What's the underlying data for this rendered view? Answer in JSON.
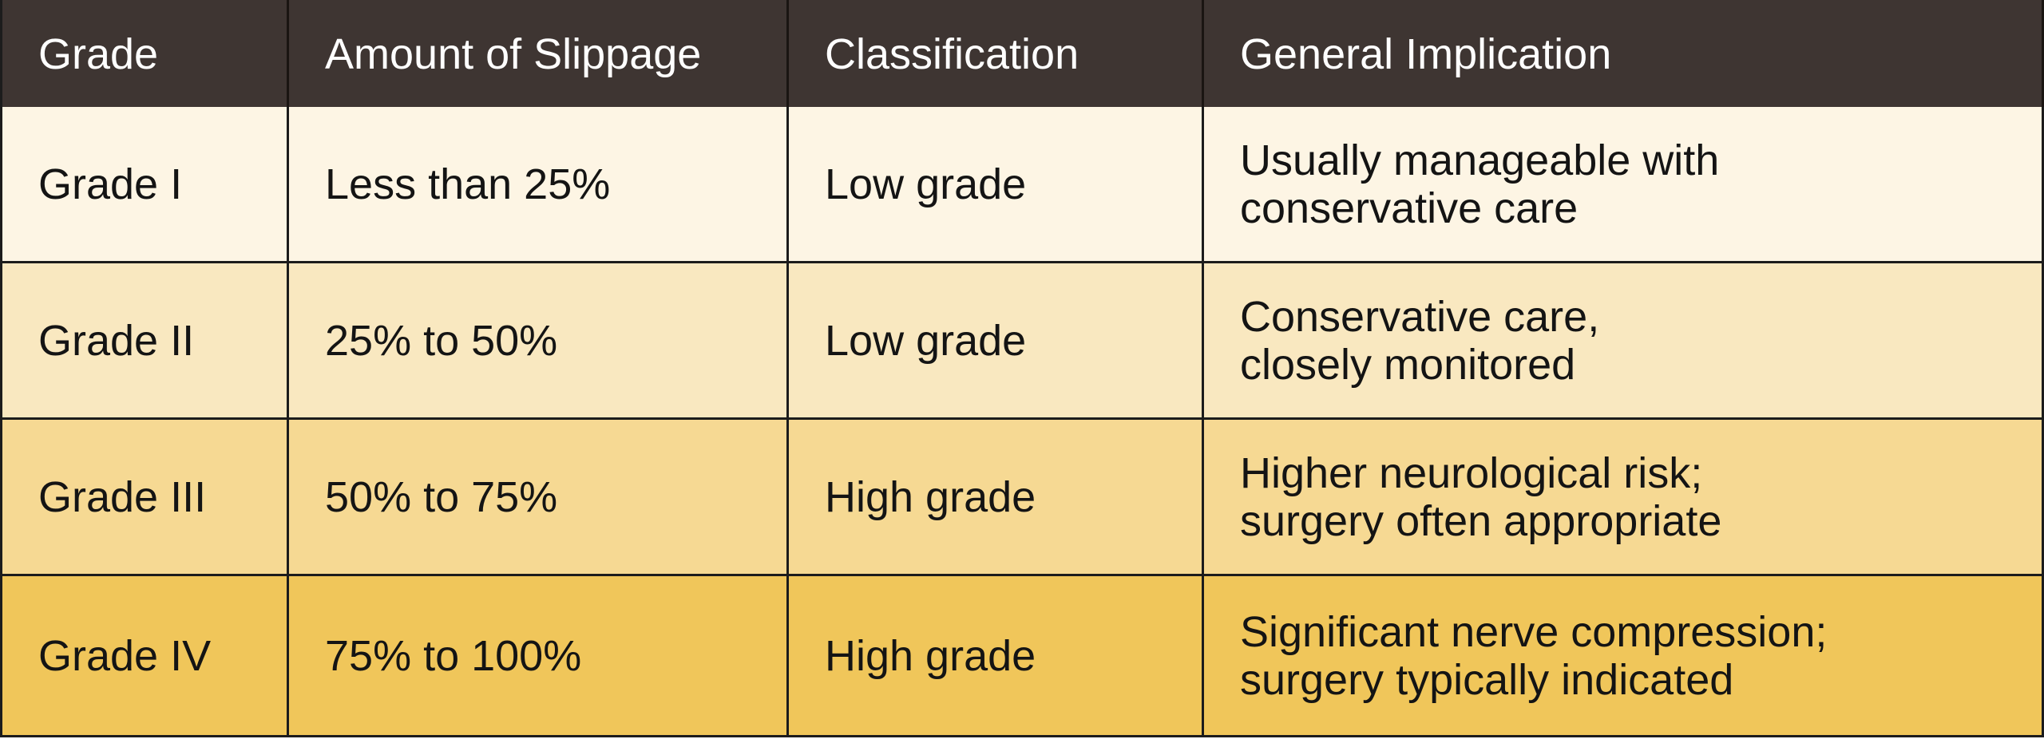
{
  "headers": {
    "grade": "Grade",
    "slippage": "Amount of Slippage",
    "classification": "Classification",
    "implication": "General Implication"
  },
  "rows": [
    {
      "grade": "Grade I",
      "slippage": "Less than 25%",
      "classification": "Low grade",
      "implication": "Usually manageable with\nconservative care",
      "color": "#fdf5e4"
    },
    {
      "grade": "Grade II",
      "slippage": "25% to 50%",
      "classification": "Low grade",
      "implication": "Conservative care,\nclosely monitored",
      "color": "#f9e8c0"
    },
    {
      "grade": "Grade III",
      "slippage": "50% to 75%",
      "classification": "High grade",
      "implication": "Higher neurological risk;\nsurgery often appropriate",
      "color": "#f6d993"
    },
    {
      "grade": "Grade IV",
      "slippage": "75% to 100%",
      "classification": "High grade",
      "implication": "Significant nerve compression;\nsurgery typically indicated",
      "color": "#f0c65a"
    }
  ],
  "colors": {
    "header_background": "#3e3532",
    "header_text": "#ffffff",
    "border": "#1c1c1c"
  }
}
